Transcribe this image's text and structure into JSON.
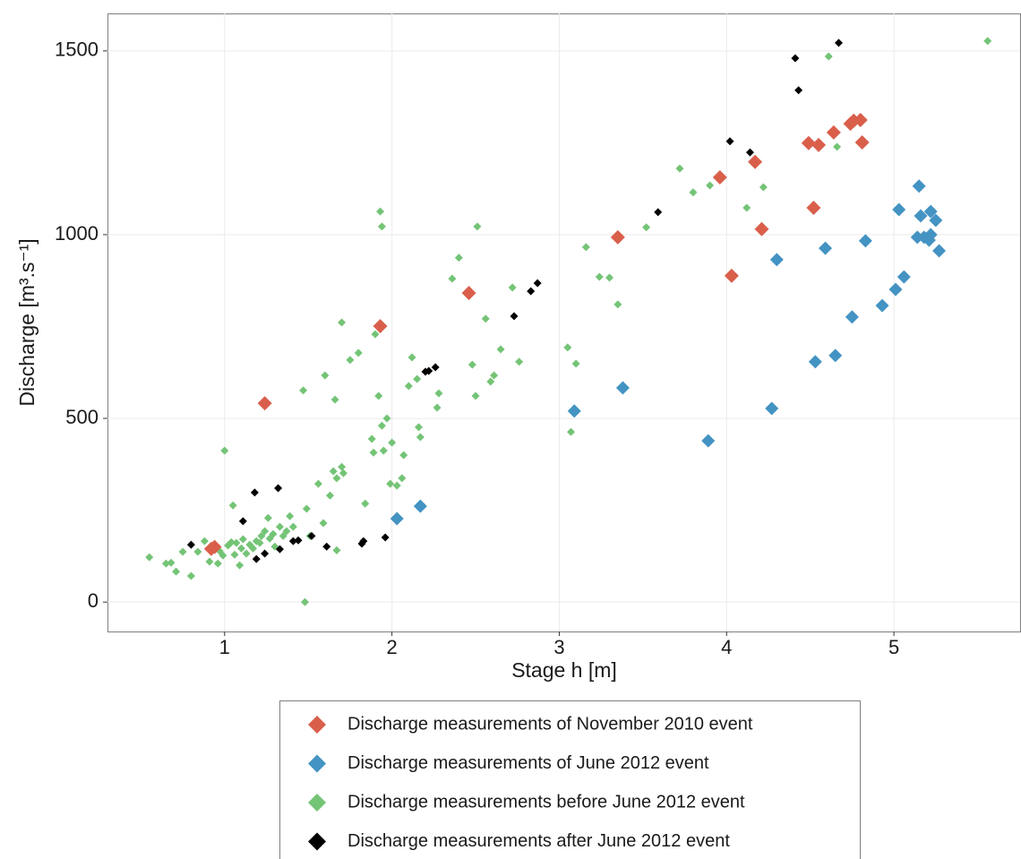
{
  "chart_data": {
    "type": "scatter",
    "x_label": "Stage h [m]",
    "y_label": "Discharge [m³.s⁻¹]",
    "xlim": [
      0.3,
      5.754
    ],
    "ylim": [
      -80,
      1602
    ],
    "xticks": [
      1,
      2,
      3,
      4,
      5
    ],
    "yticks": [
      0,
      500,
      1000,
      1500
    ],
    "grid": true,
    "legend": "bottom",
    "series": [
      {
        "name": "Discharge measurements of November 2010 event",
        "color": "#d95f4b",
        "x": [
          0.94,
          0.92,
          1.24,
          1.93,
          2.46,
          3.35,
          3.96,
          4.03,
          4.17,
          4.21,
          4.49,
          4.52,
          4.55,
          4.64,
          4.74,
          4.76,
          4.8,
          4.81
        ],
        "y": [
          150,
          145,
          541,
          751,
          841,
          993,
          1156,
          888,
          1198,
          1015,
          1249,
          1073,
          1244,
          1278,
          1302,
          1310,
          1312,
          1251
        ]
      },
      {
        "name": "Discharge measurements of June 2012 event",
        "color": "#4393c3",
        "x": [
          2.03,
          2.17,
          3.09,
          3.38,
          3.89,
          4.27,
          4.3,
          4.53,
          4.59,
          4.65,
          4.75,
          4.83,
          4.93,
          5.01,
          5.03,
          5.06,
          5.15,
          5.14,
          5.16,
          5.18,
          5.21,
          5.22,
          5.22,
          5.25,
          5.27
        ],
        "y": [
          227,
          261,
          520,
          583,
          439,
          527,
          932,
          654,
          963,
          671,
          776,
          983,
          807,
          851,
          1068,
          885,
          1132,
          993,
          1051,
          993,
          985,
          1063,
          1000,
          1039,
          956
        ]
      },
      {
        "name": "Discharge measurements before June 2012 event",
        "color": "#74c476",
        "x": [
          0.55,
          0.65,
          0.68,
          0.71,
          0.75,
          0.8,
          0.84,
          0.88,
          0.91,
          0.96,
          0.97,
          0.99,
          1.0,
          1.02,
          1.04,
          1.05,
          1.06,
          1.07,
          1.09,
          1.1,
          1.11,
          1.13,
          1.15,
          1.17,
          1.19,
          1.21,
          1.22,
          1.24,
          1.26,
          1.27,
          1.29,
          1.3,
          1.33,
          1.35,
          1.37,
          1.39,
          1.41,
          1.47,
          1.48,
          1.49,
          1.51,
          1.56,
          1.59,
          1.6,
          1.63,
          1.65,
          1.66,
          1.67,
          1.67,
          1.7,
          1.71,
          1.7,
          1.75,
          1.8,
          1.84,
          1.88,
          1.89,
          1.9,
          1.92,
          1.93,
          1.94,
          1.94,
          1.95,
          1.97,
          1.99,
          2.0,
          2.03,
          2.06,
          2.07,
          2.1,
          2.12,
          2.15,
          2.16,
          2.17,
          2.27,
          2.28,
          2.36,
          2.4,
          2.48,
          2.5,
          2.51,
          2.56,
          2.59,
          2.61,
          2.65,
          2.72,
          2.76,
          3.05,
          3.07,
          3.1,
          3.16,
          3.24,
          3.3,
          3.35,
          3.52,
          3.72,
          3.8,
          3.9,
          4.12,
          4.22,
          4.61,
          4.66,
          5.56
        ],
        "y": [
          122,
          105,
          107,
          83,
          137,
          71,
          137,
          166,
          110,
          105,
          139,
          127,
          412,
          154,
          163,
          263,
          129,
          161,
          100,
          146,
          171,
          132,
          156,
          146,
          166,
          161,
          180,
          193,
          229,
          173,
          185,
          151,
          205,
          180,
          193,
          234,
          205,
          576,
          0,
          254,
          180,
          322,
          215,
          617,
          290,
          356,
          551,
          337,
          141,
          368,
          351,
          761,
          659,
          678,
          268,
          444,
          407,
          729,
          561,
          1063,
          1022,
          480,
          412,
          500,
          322,
          434,
          317,
          337,
          400,
          588,
          666,
          607,
          476,
          449,
          529,
          568,
          880,
          937,
          646,
          561,
          1022,
          771,
          600,
          617,
          688,
          856,
          654,
          693,
          463,
          649,
          966,
          885,
          883,
          810,
          1020,
          1180,
          1115,
          1134,
          1073,
          1129,
          1485,
          1239,
          1527
        ]
      },
      {
        "name": "Discharge measurements after June 2012 event",
        "color": "#000000",
        "x": [
          0.8,
          1.11,
          1.18,
          1.19,
          1.24,
          1.32,
          1.33,
          1.41,
          1.44,
          1.52,
          1.61,
          1.82,
          1.83,
          1.96,
          2.2,
          2.22,
          2.26,
          2.73,
          2.83,
          2.87,
          3.59,
          4.02,
          4.14,
          4.41,
          4.43,
          4.67
        ],
        "y": [
          156,
          220,
          298,
          117,
          132,
          310,
          144,
          166,
          168,
          180,
          151,
          159,
          166,
          176,
          627,
          629,
          639,
          778,
          846,
          868,
          1061,
          1254,
          1224,
          1480,
          1393,
          1522
        ]
      }
    ]
  }
}
